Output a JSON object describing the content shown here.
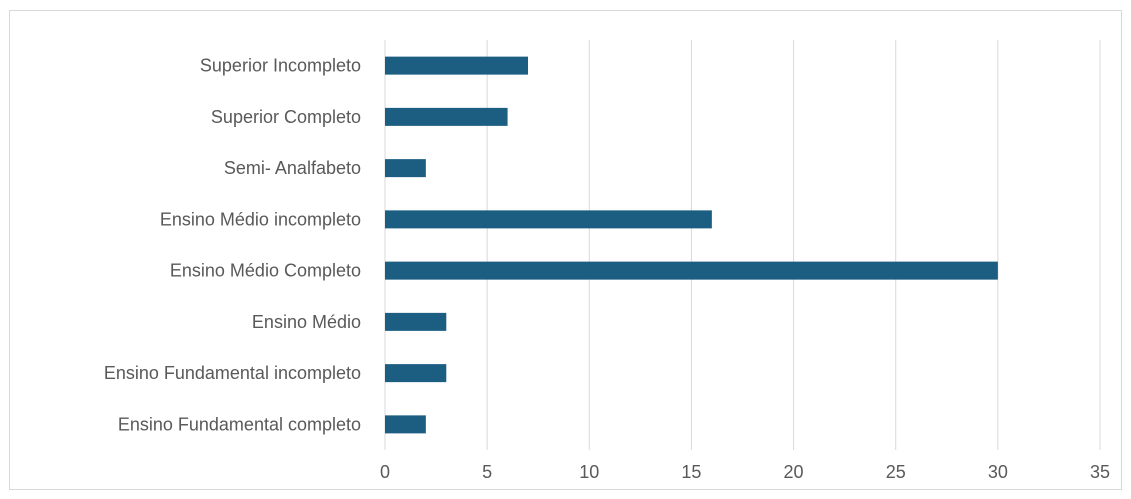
{
  "chart_data": {
    "type": "bar",
    "orientation": "horizontal",
    "categories": [
      "Ensino Fundamental completo",
      "Ensino Fundamental incompleto",
      "Ensino Médio",
      "Ensino Médio Completo",
      "Ensino Médio incompleto",
      "Semi- Analfabeto",
      "Superior Completo",
      "Superior Incompleto"
    ],
    "values": [
      2,
      3,
      3,
      30,
      16,
      2,
      6,
      7
    ],
    "xlim": [
      0,
      35
    ],
    "xticks": [
      0,
      5,
      10,
      15,
      20,
      25,
      30,
      35
    ],
    "title": "",
    "xlabel": "",
    "ylabel": "",
    "grid": "vertical",
    "legend": "none",
    "bar_color": "#1b5e82",
    "grid_color": "#d9d9d9"
  }
}
